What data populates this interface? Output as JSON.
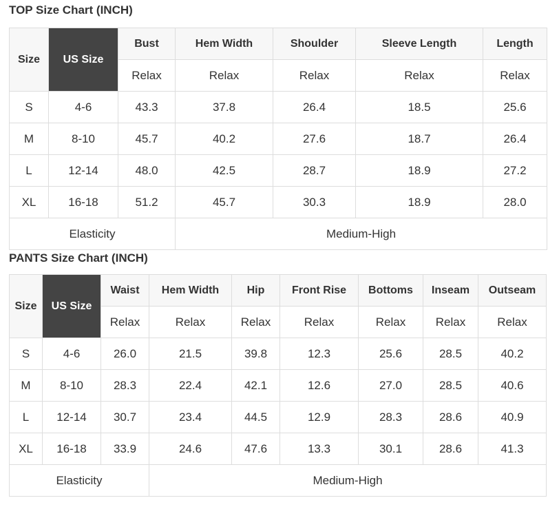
{
  "top": {
    "title": "TOP Size Chart (INCH)",
    "size_label": "Size",
    "us_size_label": "US Size",
    "columns": [
      "Bust",
      "Hem Width",
      "Shoulder",
      "Sleeve Length",
      "Length"
    ],
    "fit": [
      "Relax",
      "Relax",
      "Relax",
      "Relax",
      "Relax"
    ],
    "rows": [
      [
        "S",
        "4-6",
        "43.3",
        "37.8",
        "26.4",
        "18.5",
        "25.6"
      ],
      [
        "M",
        "8-10",
        "45.7",
        "40.2",
        "27.6",
        "18.7",
        "26.4"
      ],
      [
        "L",
        "12-14",
        "48.0",
        "42.5",
        "28.7",
        "18.9",
        "27.2"
      ],
      [
        "XL",
        "16-18",
        "51.2",
        "45.7",
        "30.3",
        "18.9",
        "28.0"
      ]
    ],
    "elasticity_label": "Elasticity",
    "elasticity_value": "Medium-High"
  },
  "pants": {
    "title": "PANTS Size Chart (INCH)",
    "size_label": "Size",
    "us_size_label": "US Size",
    "columns": [
      "Waist",
      "Hem Width",
      "Hip",
      "Front Rise",
      "Bottoms",
      "Inseam",
      "Outseam"
    ],
    "fit": [
      "Relax",
      "Relax",
      "Relax",
      "Relax",
      "Relax",
      "Relax",
      "Relax"
    ],
    "rows": [
      [
        "S",
        "4-6",
        "26.0",
        "21.5",
        "39.8",
        "12.3",
        "25.6",
        "28.5",
        "40.2"
      ],
      [
        "M",
        "8-10",
        "28.3",
        "22.4",
        "42.1",
        "12.6",
        "27.0",
        "28.5",
        "40.6"
      ],
      [
        "L",
        "12-14",
        "30.7",
        "23.4",
        "44.5",
        "12.9",
        "28.3",
        "28.6",
        "40.9"
      ],
      [
        "XL",
        "16-18",
        "33.9",
        "24.6",
        "47.6",
        "13.3",
        "30.1",
        "28.6",
        "41.3"
      ]
    ],
    "elasticity_label": "Elasticity",
    "elasticity_value": "Medium-High"
  }
}
